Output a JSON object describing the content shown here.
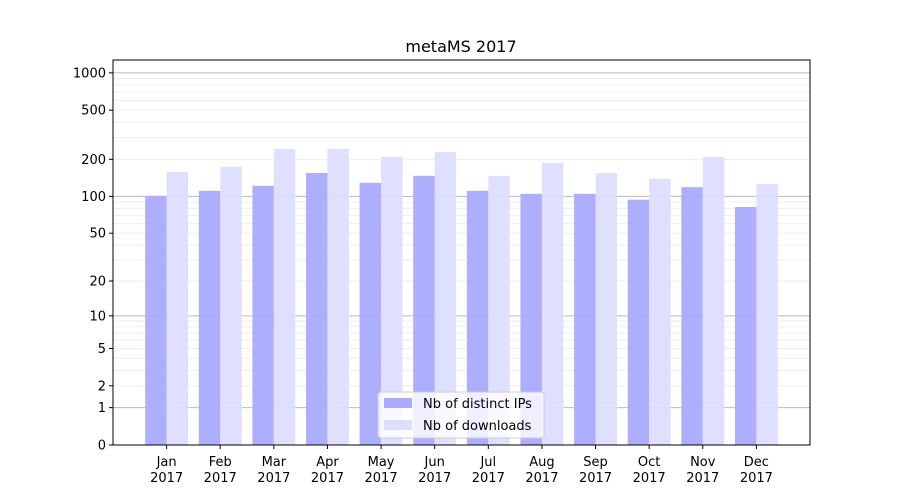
{
  "chart_data": {
    "type": "bar",
    "title": "metaMS 2017",
    "xlabel": "",
    "ylabel": "",
    "yscale": "log(1+y)",
    "ylim": [
      0,
      1270
    ],
    "yticks": [
      0,
      1,
      2,
      5,
      10,
      20,
      50,
      100,
      200,
      500,
      1000
    ],
    "grid": true,
    "legend_position": "lower center",
    "categories": [
      "Jan\n2017",
      "Feb\n2017",
      "Mar\n2017",
      "Apr\n2017",
      "May\n2017",
      "Jun\n2017",
      "Jul\n2017",
      "Aug\n2017",
      "Sep\n2017",
      "Oct\n2017",
      "Nov\n2017",
      "Dec\n2017"
    ],
    "series": [
      {
        "name": "Nb of distinct IPs",
        "color": "#aaaaff",
        "values": [
          101,
          111,
          122,
          155,
          129,
          147,
          111,
          105,
          105,
          94,
          119,
          82
        ]
      },
      {
        "name": "Nb of downloads",
        "color": "#ddddff",
        "values": [
          158,
          174,
          243,
          243,
          209,
          230,
          147,
          187,
          155,
          139,
          209,
          126
        ]
      }
    ]
  }
}
